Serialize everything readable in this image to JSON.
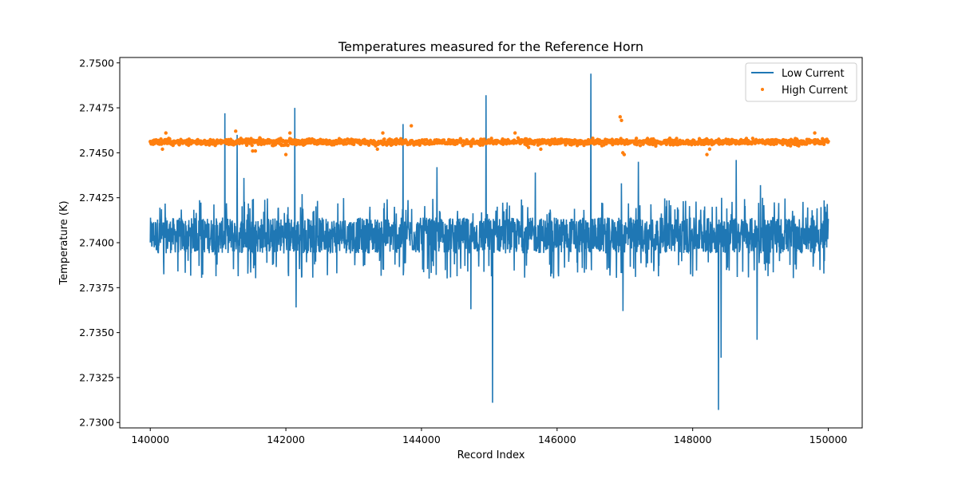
{
  "chart_data": {
    "type": "line",
    "title": "Temperatures measured for the Reference Horn",
    "xlabel": "Record Index",
    "ylabel": "Temperature (K)",
    "xlim": [
      139550,
      150500
    ],
    "ylim": [
      2.7297,
      2.7503
    ],
    "x_ticks": [
      140000,
      142000,
      144000,
      146000,
      148000,
      150000
    ],
    "x_tick_labels": [
      "140000",
      "142000",
      "144000",
      "146000",
      "148000",
      "150000"
    ],
    "y_ticks": [
      2.73,
      2.7325,
      2.735,
      2.7375,
      2.74,
      2.7425,
      2.745,
      2.7475,
      2.75
    ],
    "y_tick_labels": [
      "2.7300",
      "2.7325",
      "2.7350",
      "2.7375",
      "2.7400",
      "2.7425",
      "2.7450",
      "2.7475",
      "2.7500"
    ],
    "legend_position": "top-right",
    "series": [
      {
        "name": "Low Current",
        "kind": "line",
        "color": "#1f77b4",
        "x_start": 140000,
        "x_end": 150000,
        "band_low": 2.7394,
        "band_high": 2.7414,
        "typical_low": 2.738,
        "typical_high": 2.7425,
        "spikes": [
          {
            "x": 141100,
            "y": 2.7472
          },
          {
            "x": 141280,
            "y": 2.746
          },
          {
            "x": 141380,
            "y": 2.7436
          },
          {
            "x": 142130,
            "y": 2.7475
          },
          {
            "x": 142150,
            "y": 2.7364
          },
          {
            "x": 142240,
            "y": 2.7427
          },
          {
            "x": 143730,
            "y": 2.7466
          },
          {
            "x": 144230,
            "y": 2.7442
          },
          {
            "x": 144730,
            "y": 2.7363
          },
          {
            "x": 144950,
            "y": 2.7482
          },
          {
            "x": 145050,
            "y": 2.7311
          },
          {
            "x": 145680,
            "y": 2.7439
          },
          {
            "x": 146500,
            "y": 2.7494
          },
          {
            "x": 146950,
            "y": 2.7433
          },
          {
            "x": 146970,
            "y": 2.7362
          },
          {
            "x": 147200,
            "y": 2.7445
          },
          {
            "x": 148380,
            "y": 2.7307
          },
          {
            "x": 148420,
            "y": 2.7336
          },
          {
            "x": 148640,
            "y": 2.7446
          },
          {
            "x": 148950,
            "y": 2.7346
          },
          {
            "x": 149000,
            "y": 2.7432
          }
        ]
      },
      {
        "name": "High Current",
        "kind": "scatter",
        "color": "#ff7f0e",
        "x_start": 140000,
        "x_end": 150000,
        "center": 2.7456,
        "spread": 0.00025,
        "outliers": [
          {
            "x": 140180,
            "y": 2.7452
          },
          {
            "x": 140230,
            "y": 2.7461
          },
          {
            "x": 141260,
            "y": 2.7462
          },
          {
            "x": 141510,
            "y": 2.7451
          },
          {
            "x": 141550,
            "y": 2.7451
          },
          {
            "x": 142000,
            "y": 2.7449
          },
          {
            "x": 142060,
            "y": 2.7461
          },
          {
            "x": 143350,
            "y": 2.7452
          },
          {
            "x": 143430,
            "y": 2.7461
          },
          {
            "x": 143850,
            "y": 2.7465
          },
          {
            "x": 145380,
            "y": 2.7461
          },
          {
            "x": 145580,
            "y": 2.7453
          },
          {
            "x": 145760,
            "y": 2.7452
          },
          {
            "x": 146930,
            "y": 2.747
          },
          {
            "x": 146950,
            "y": 2.7468
          },
          {
            "x": 146970,
            "y": 2.745
          },
          {
            "x": 146990,
            "y": 2.7449
          },
          {
            "x": 148210,
            "y": 2.7449
          },
          {
            "x": 148250,
            "y": 2.7452
          },
          {
            "x": 149800,
            "y": 2.7461
          }
        ]
      }
    ]
  }
}
